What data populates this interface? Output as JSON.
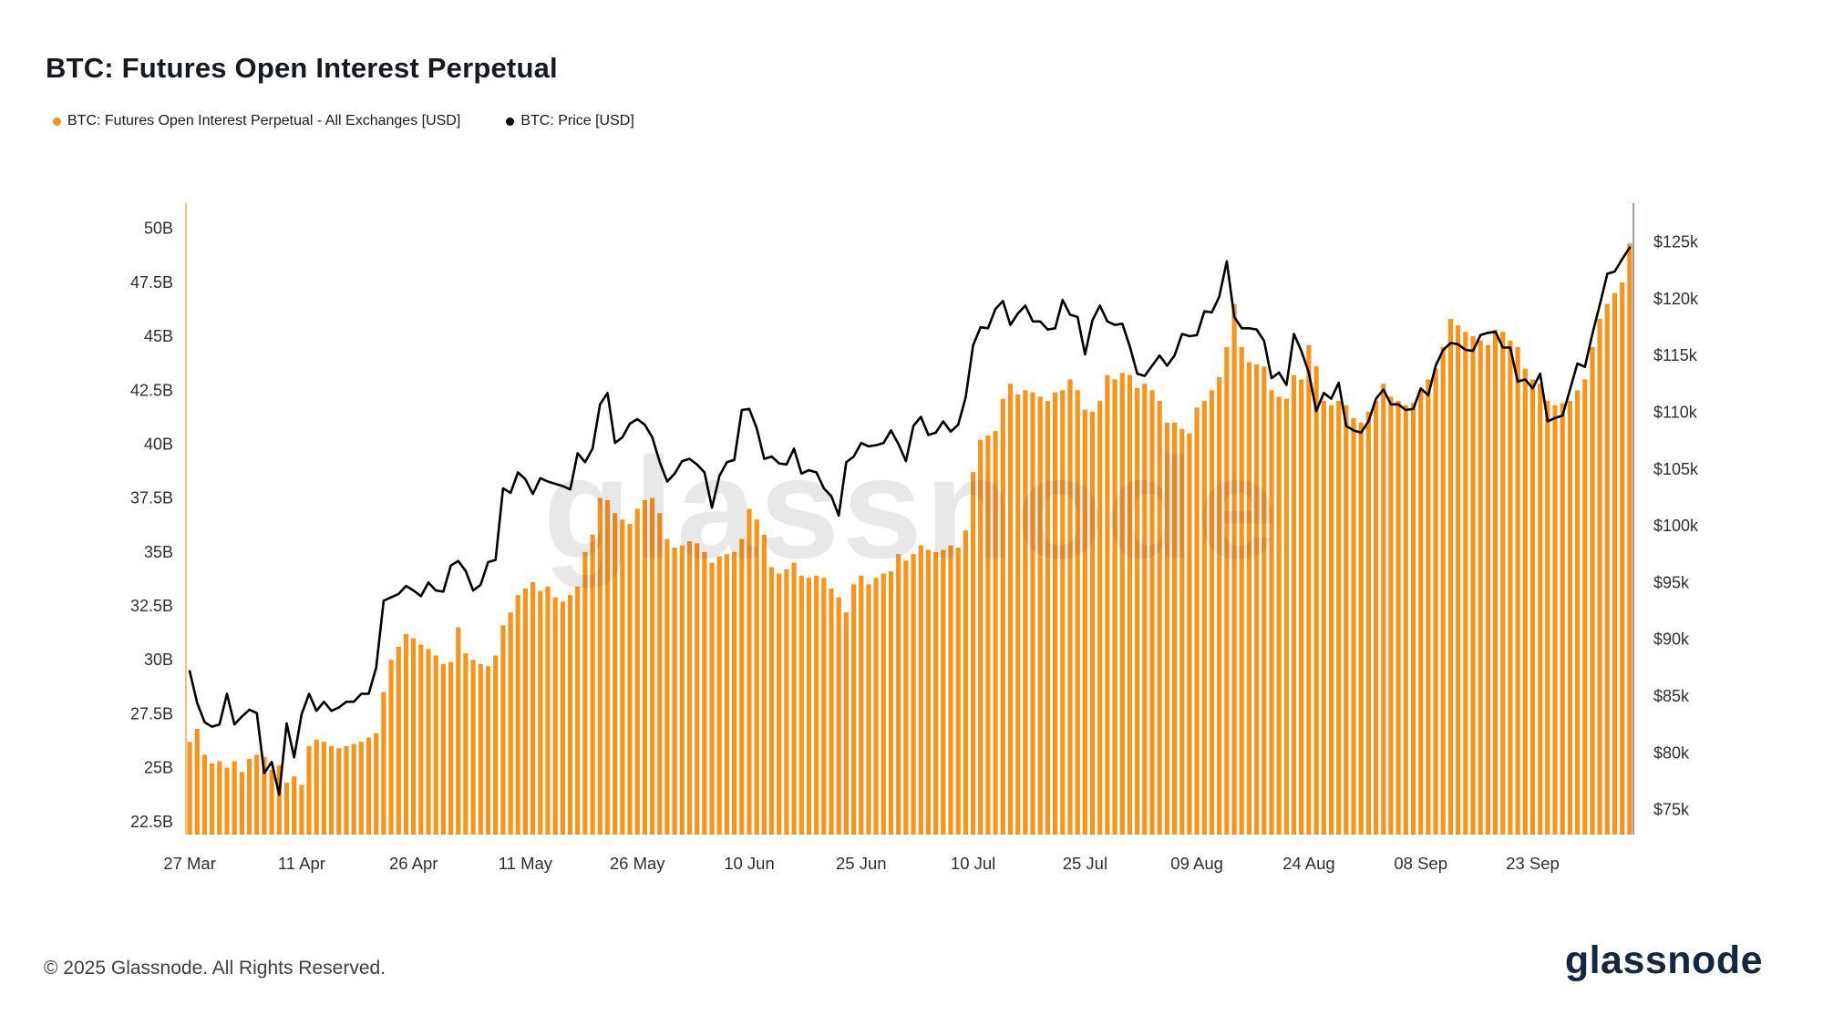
{
  "header": {
    "title": "BTC: Futures Open Interest Perpetual"
  },
  "legend": [
    {
      "label": "BTC: Futures Open Interest Perpetual - All Exchanges [USD]",
      "color": "#f7941d"
    },
    {
      "label": "BTC: Price [USD]",
      "color": "#000000"
    }
  ],
  "watermark": "glassnode",
  "footer": {
    "copyright": "© 2025 Glassnode. All Rights Reserved.",
    "brand": "glassnode",
    "brand_color": "#15263f"
  },
  "chart_data": {
    "type": "bar",
    "title": "BTC: Futures Open Interest Perpetual",
    "xlabel": "",
    "grid": false,
    "legend_position": "top-left",
    "x_tick_labels": [
      "27 Mar",
      "11 Apr",
      "26 Apr",
      "11 May",
      "26 May",
      "10 Jun",
      "25 Jun",
      "10 Jul",
      "25 Jul",
      "09 Aug",
      "24 Aug",
      "08 Sep",
      "23 Sep"
    ],
    "x_tick_indices": [
      0,
      15,
      30,
      45,
      60,
      75,
      90,
      105,
      120,
      135,
      150,
      165,
      180
    ],
    "left_axis": {
      "labels": [
        "50B",
        "47.5B",
        "45B",
        "42.5B",
        "40B",
        "37.5B",
        "35B",
        "32.5B",
        "30B",
        "27.5B",
        "25B",
        "22.5B"
      ],
      "values": [
        50,
        47.5,
        45,
        42.5,
        40,
        37.5,
        35,
        32.5,
        30,
        27.5,
        25,
        22.5
      ],
      "ylim": [
        21.9,
        51.0
      ],
      "unit": "USD billions"
    },
    "right_axis": {
      "labels": [
        "$125k",
        "$120k",
        "$115k",
        "$110k",
        "$105k",
        "$100k",
        "$95k",
        "$90k",
        "$85k",
        "$80k",
        "$75k"
      ],
      "values": [
        125,
        120,
        115,
        110,
        105,
        100,
        95,
        90,
        85,
        80,
        75
      ],
      "ylim": [
        72.8,
        128.1
      ],
      "unit": "USD thousands"
    },
    "series": [
      {
        "name": "BTC: Futures Open Interest Perpetual - All Exchanges [USD]",
        "type": "bar",
        "axis": "left",
        "color": "#f7941d",
        "values": [
          26.2,
          26.8,
          25.6,
          25.2,
          25.3,
          25.0,
          25.3,
          24.8,
          25.4,
          25.6,
          25.5,
          24.9,
          25.1,
          24.3,
          24.6,
          24.2,
          26.0,
          26.3,
          26.2,
          26.0,
          25.9,
          26.0,
          26.1,
          26.2,
          26.4,
          26.6,
          28.5,
          30.0,
          30.6,
          31.2,
          31.0,
          30.7,
          30.5,
          30.2,
          29.8,
          29.9,
          31.5,
          30.3,
          30.0,
          29.8,
          29.7,
          30.2,
          31.6,
          32.2,
          33.0,
          33.3,
          33.6,
          33.2,
          33.4,
          32.9,
          32.7,
          33.0,
          33.4,
          35.0,
          35.8,
          37.5,
          37.4,
          36.8,
          36.5,
          36.3,
          37.0,
          37.4,
          37.5,
          36.8,
          35.6,
          35.2,
          35.3,
          35.5,
          35.4,
          35.0,
          34.5,
          34.8,
          34.9,
          35.0,
          35.6,
          37.0,
          36.5,
          35.8,
          34.3,
          34.0,
          34.2,
          34.5,
          33.9,
          33.8,
          33.9,
          33.8,
          33.3,
          32.9,
          32.2,
          33.5,
          33.9,
          33.5,
          33.8,
          34.0,
          34.1,
          34.9,
          34.6,
          34.9,
          35.3,
          35.1,
          35.0,
          35.1,
          35.3,
          35.2,
          36.0,
          38.7,
          40.2,
          40.4,
          40.6,
          42.1,
          42.8,
          42.3,
          42.5,
          42.4,
          42.2,
          42.0,
          42.4,
          42.5,
          43.0,
          42.5,
          41.6,
          41.5,
          42.0,
          43.2,
          43.0,
          43.3,
          43.2,
          42.6,
          42.8,
          42.5,
          42.0,
          41.0,
          41.0,
          40.7,
          40.5,
          41.7,
          42.0,
          42.5,
          43.1,
          44.5,
          46.5,
          44.5,
          43.8,
          43.7,
          43.6,
          42.5,
          42.2,
          42.1,
          43.2,
          43.0,
          44.6,
          43.6,
          42.0,
          41.8,
          42.0,
          41.8,
          41.2,
          41.0,
          41.5,
          42.0,
          42.8,
          42.2,
          42.0,
          41.8,
          41.9,
          42.5,
          43.0,
          43.5,
          44.5,
          45.8,
          45.5,
          45.2,
          45.0,
          44.8,
          44.6,
          45.3,
          45.2,
          44.8,
          44.5,
          43.5,
          43.0,
          42.8,
          42.0,
          41.8,
          41.9,
          42.0,
          42.5,
          43.0,
          44.5,
          45.8,
          46.5,
          47.0,
          47.5,
          49.3
        ]
      },
      {
        "name": "BTC: Price [USD]",
        "type": "line",
        "axis": "right",
        "color": "#000000",
        "values": [
          87.2,
          84.4,
          82.7,
          82.3,
          82.5,
          85.2,
          82.5,
          83.2,
          83.8,
          83.5,
          78.2,
          79.2,
          76.3,
          82.6,
          79.6,
          83.4,
          85.2,
          83.7,
          84.5,
          83.7,
          84.0,
          84.5,
          84.5,
          85.2,
          85.2,
          87.5,
          93.4,
          93.7,
          94.0,
          94.7,
          94.3,
          93.8,
          95.0,
          94.3,
          94.2,
          96.5,
          96.9,
          96.0,
          94.3,
          94.8,
          96.8,
          97.0,
          103.3,
          102.9,
          104.7,
          104.1,
          102.8,
          104.2,
          103.9,
          103.7,
          103.5,
          103.2,
          106.4,
          105.6,
          106.8,
          110.7,
          111.7,
          107.3,
          107.8,
          109.0,
          109.4,
          108.9,
          107.8,
          105.6,
          103.9,
          104.6,
          105.7,
          105.9,
          105.4,
          104.7,
          101.6,
          104.4,
          105.6,
          105.8,
          110.2,
          110.3,
          108.6,
          105.9,
          106.1,
          105.5,
          105.4,
          106.8,
          104.6,
          104.9,
          104.7,
          103.3,
          102.6,
          100.9,
          105.6,
          106.1,
          107.3,
          107.0,
          107.1,
          107.3,
          108.4,
          107.2,
          105.7,
          108.8,
          109.6,
          108.0,
          108.2,
          109.2,
          108.3,
          108.9,
          111.3,
          115.9,
          117.5,
          117.4,
          119.1,
          119.8,
          117.7,
          118.7,
          119.4,
          118.0,
          118.0,
          117.3,
          117.4,
          119.9,
          118.6,
          118.4,
          115.1,
          118.1,
          119.4,
          118.0,
          117.7,
          117.8,
          115.8,
          113.4,
          113.2,
          114.1,
          115.0,
          114.1,
          115.0,
          116.9,
          116.7,
          116.8,
          118.9,
          118.8,
          120.2,
          123.3,
          118.4,
          117.4,
          117.4,
          117.3,
          116.3,
          113.0,
          113.5,
          112.4,
          116.9,
          115.4,
          113.5,
          110.1,
          111.7,
          111.2,
          112.6,
          108.8,
          108.4,
          108.2,
          109.2,
          111.2,
          112.0,
          110.7,
          110.7,
          110.2,
          110.3,
          112.1,
          111.5,
          114.1,
          115.5,
          116.1,
          116.0,
          115.5,
          115.4,
          116.8,
          117.0,
          117.1,
          115.7,
          115.7,
          112.7,
          112.9,
          112.1,
          113.4,
          109.2,
          109.5,
          109.7,
          112.0,
          114.3,
          114.0,
          116.9,
          119.5,
          122.2,
          122.4,
          123.5,
          124.5
        ]
      }
    ]
  }
}
